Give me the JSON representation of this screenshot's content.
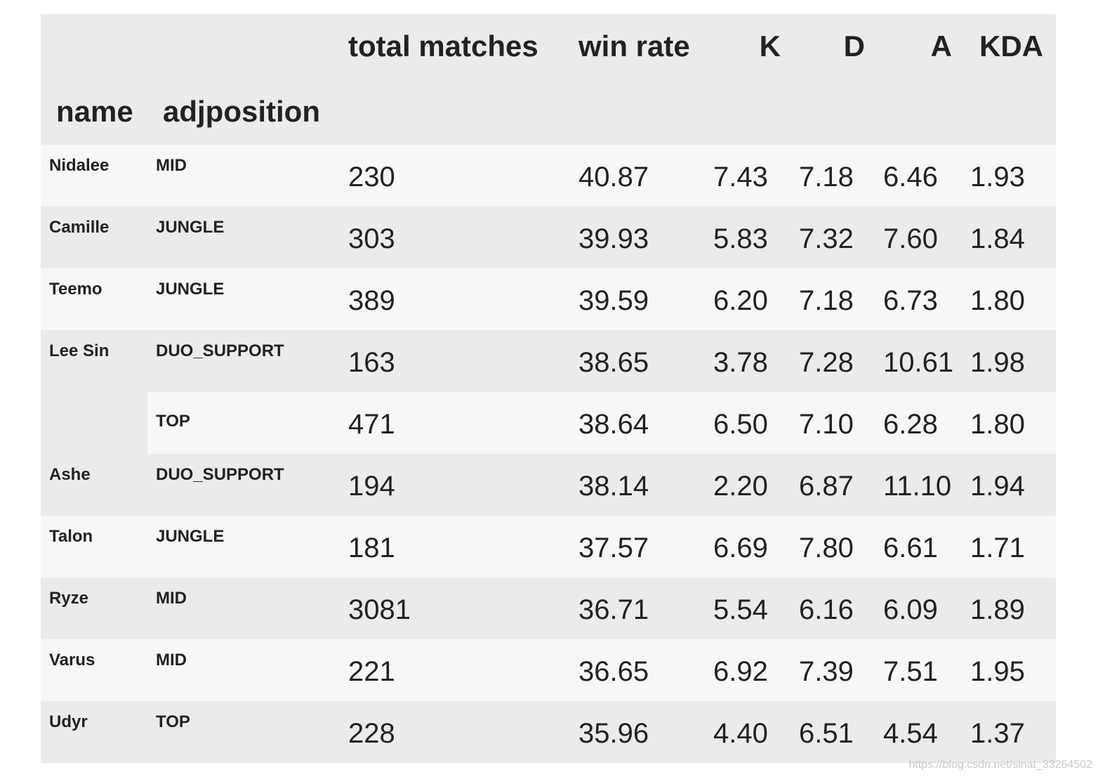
{
  "columns": [
    "total matches",
    "win rate",
    "K",
    "D",
    "A",
    "KDA"
  ],
  "index_names": [
    "name",
    "adjposition"
  ],
  "rows": [
    {
      "name": "Nidalee",
      "adjposition": "MID",
      "total_matches": "230",
      "win_rate": "40.87",
      "K": "7.43",
      "D": "7.18",
      "A": "6.46",
      "KDA": "1.93"
    },
    {
      "name": "Camille",
      "adjposition": "JUNGLE",
      "total_matches": "303",
      "win_rate": "39.93",
      "K": "5.83",
      "D": "7.32",
      "A": "7.60",
      "KDA": "1.84"
    },
    {
      "name": "Teemo",
      "adjposition": "JUNGLE",
      "total_matches": "389",
      "win_rate": "39.59",
      "K": "6.20",
      "D": "7.18",
      "A": "6.73",
      "KDA": "1.80"
    },
    {
      "name": "Lee Sin",
      "adjposition": "DUO_SUPPORT",
      "total_matches": "163",
      "win_rate": "38.65",
      "K": "3.78",
      "D": "7.28",
      "A": "10.61",
      "KDA": "1.98"
    },
    {
      "name": "",
      "adjposition": "TOP",
      "total_matches": "471",
      "win_rate": "38.64",
      "K": "6.50",
      "D": "7.10",
      "A": "6.28",
      "KDA": "1.80"
    },
    {
      "name": "Ashe",
      "adjposition": "DUO_SUPPORT",
      "total_matches": "194",
      "win_rate": "38.14",
      "K": "2.20",
      "D": "6.87",
      "A": "11.10",
      "KDA": "1.94"
    },
    {
      "name": "Talon",
      "adjposition": "JUNGLE",
      "total_matches": "181",
      "win_rate": "37.57",
      "K": "6.69",
      "D": "7.80",
      "A": "6.61",
      "KDA": "1.71"
    },
    {
      "name": "Ryze",
      "adjposition": "MID",
      "total_matches": "3081",
      "win_rate": "36.71",
      "K": "5.54",
      "D": "6.16",
      "A": "6.09",
      "KDA": "1.89"
    },
    {
      "name": "Varus",
      "adjposition": "MID",
      "total_matches": "221",
      "win_rate": "36.65",
      "K": "6.92",
      "D": "7.39",
      "A": "7.51",
      "KDA": "1.95"
    },
    {
      "name": "Udyr",
      "adjposition": "TOP",
      "total_matches": "228",
      "win_rate": "35.96",
      "K": "4.40",
      "D": "6.51",
      "A": "4.54",
      "KDA": "1.37"
    }
  ],
  "watermark": "https://blog.csdn.net/sinat_33264502"
}
